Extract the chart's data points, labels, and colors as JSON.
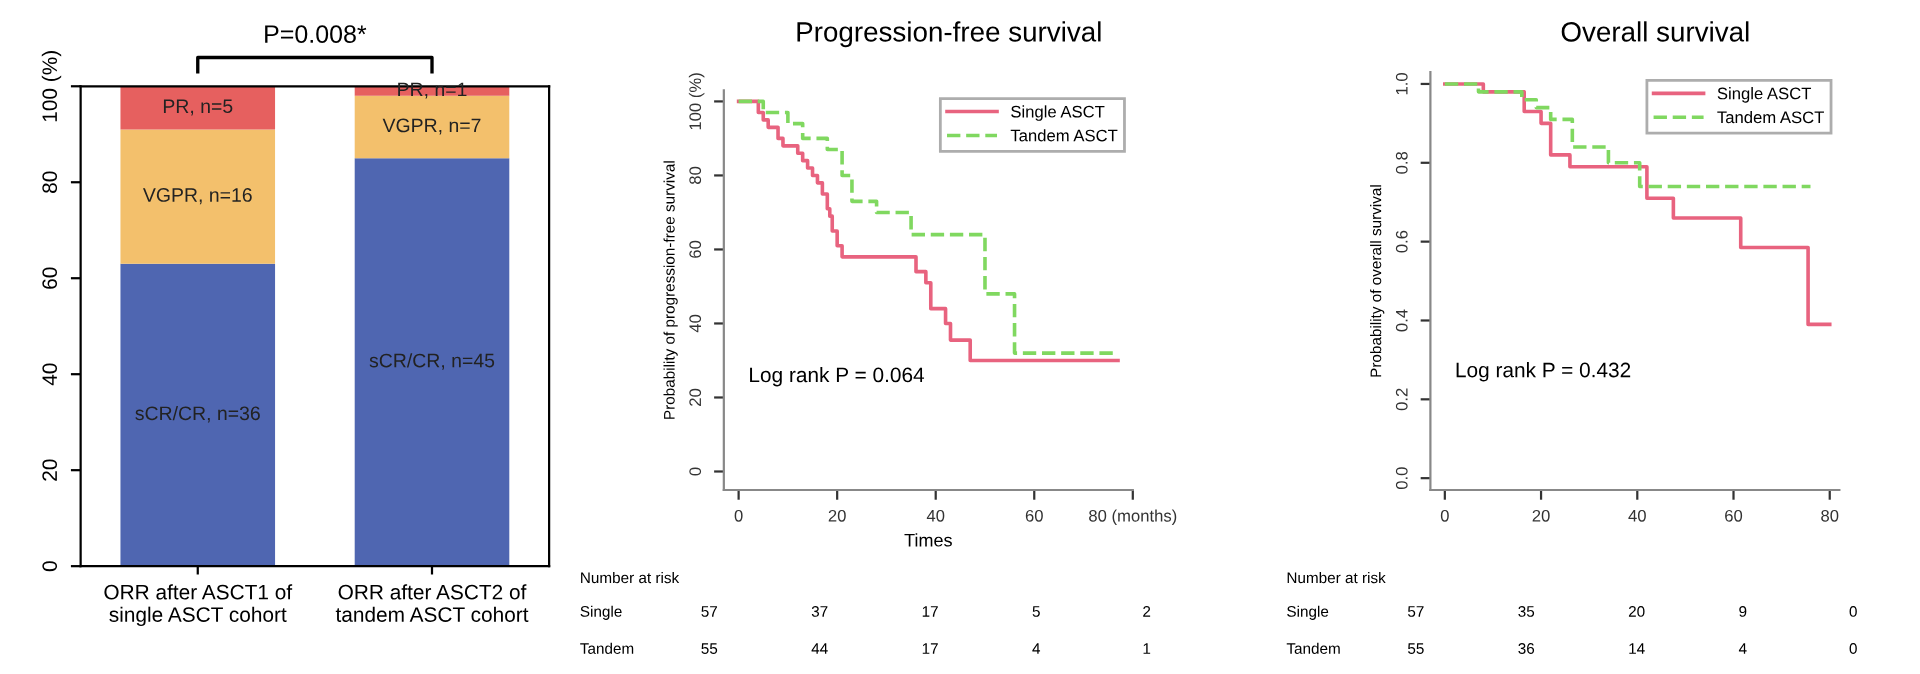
{
  "chart_data": [
    {
      "type": "bar",
      "stacked": true,
      "categories": [
        "ORR after ASCT1 of\nsingle ASCT cohort",
        "ORR after ASCT2 of\ntandem ASCT cohort"
      ],
      "series": [
        {
          "color": "#4f66b1",
          "values": [
            63,
            85
          ]
        },
        {
          "color": "#f3c06c",
          "values": [
            28,
            13
          ]
        },
        {
          "color": "#e6605f",
          "values": [
            9,
            2
          ]
        }
      ],
      "ylim": [
        0,
        100
      ],
      "yticks": [
        0,
        20,
        40,
        60,
        80,
        {
          "value": 100,
          "label": "100 (%)"
        }
      ],
      "annotations": [
        "P=0.008*",
        "sCR/CR, n=36",
        "VGPR, n=16",
        "PR, n=5",
        "sCR/CR, n=45",
        "VGPR, n=7",
        "PR, n=1"
      ],
      "grid": false,
      "legend": false
    },
    {
      "type": "step",
      "title": "Progression-free survival",
      "xlabel": "Times",
      "ylabel": "Probability of progression-free survival",
      "series": [
        {
          "name": "Single ASCT",
          "color": "#e8637f",
          "line_style": "solid",
          "x": [
            0,
            4,
            5,
            6,
            8,
            9,
            12,
            13,
            14,
            15,
            16,
            17,
            18,
            18.5,
            19,
            20,
            21,
            36,
            38,
            39,
            42,
            43,
            47,
            77
          ],
          "values": [
            100,
            97,
            95,
            93,
            90,
            88,
            86,
            84,
            82,
            80,
            78,
            75,
            71,
            69,
            65,
            61,
            58,
            54,
            51,
            44,
            40,
            35.5,
            30,
            30
          ]
        },
        {
          "name": "Tandem ASCT",
          "color": "#80d860",
          "line_style": "dashed",
          "x": [
            0,
            5,
            10,
            13,
            18,
            21,
            23,
            28,
            35,
            50,
            56,
            77
          ],
          "values": [
            100,
            97,
            94,
            90,
            87,
            80,
            73,
            70,
            64,
            48,
            32,
            32
          ]
        }
      ],
      "xlim": [
        -3,
        80
      ],
      "xticks": [
        0,
        20,
        40,
        60,
        {
          "value": 80,
          "label": "80 (months)"
        }
      ],
      "ylim": [
        -5,
        103
      ],
      "yticks": [
        0,
        20,
        40,
        60,
        80,
        {
          "value": 100,
          "label": "100 (%)"
        }
      ],
      "annotations": [
        "Log rank P = 0.064",
        "Number at risk",
        "Single",
        "57",
        "37",
        "17",
        "5",
        "2",
        "Tandem",
        "55",
        "44",
        "17",
        "4",
        "1"
      ],
      "grid": false,
      "legend": "top right",
      "marker": "none"
    },
    {
      "type": "step",
      "title": "Overall survival",
      "ylabel": "Probability of overall survival",
      "series": [
        {
          "name": "Single ASCT",
          "color": "#e8637f",
          "line_style": "solid",
          "x": [
            0,
            8,
            16.5,
            20,
            22,
            26,
            42,
            47.5,
            61.5,
            75.5,
            80
          ],
          "values": [
            1.0,
            0.98,
            0.93,
            0.9,
            0.82,
            0.79,
            0.71,
            0.66,
            0.585,
            0.39,
            0.39
          ]
        },
        {
          "name": "Tandem ASCT",
          "color": "#80d860",
          "line_style": "dashed",
          "x": [
            0,
            7,
            16,
            19,
            22,
            26.5,
            34,
            40.5,
            76
          ],
          "values": [
            1.0,
            0.98,
            0.96,
            0.94,
            0.91,
            0.84,
            0.8,
            0.74,
            0.74
          ]
        }
      ],
      "xlim": [
        -3,
        82
      ],
      "xticks": [
        0,
        20,
        40,
        60,
        80
      ],
      "ylim": [
        -0.03,
        1.03
      ],
      "yticks": [
        {
          "value": 0,
          "label": "0.0"
        },
        0.2,
        0.4,
        0.6,
        0.8,
        {
          "value": 1,
          "label": "1.0"
        }
      ],
      "annotations": [
        "Log rank P = 0.432",
        "Number at risk",
        "Single",
        "57",
        "35",
        "20",
        "9",
        "0",
        "Tandem",
        "55",
        "36",
        "14",
        "4",
        "0"
      ],
      "grid": false,
      "legend": "top right",
      "marker": "none"
    }
  ]
}
